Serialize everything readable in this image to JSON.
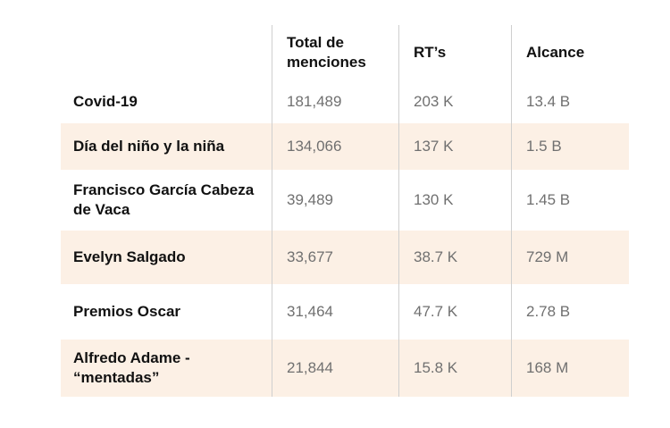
{
  "table": {
    "headers": [
      "",
      "Total de\nmenciones",
      "RT’s",
      "Alcance"
    ],
    "rows": [
      {
        "name": "Covid-19",
        "mentions": "181,489",
        "rts": "203 K",
        "reach": "13.4 B"
      },
      {
        "name": "Día del niño y la niña",
        "mentions": "134,066",
        "rts": "137 K",
        "reach": "1.5 B"
      },
      {
        "name": "Francisco García Cabeza de Vaca",
        "mentions": "39,489",
        "rts": "130 K",
        "reach": "1.45 B"
      },
      {
        "name": "Evelyn Salgado",
        "mentions": "33,677",
        "rts": "38.7 K",
        "reach": "729 M"
      },
      {
        "name": "Premios Oscar",
        "mentions": "31,464",
        "rts": "47.7 K",
        "reach": "2.78 B"
      },
      {
        "name": "Alfredo Adame - “mentadas”",
        "mentions": "21,844",
        "rts": "15.8 K",
        "reach": "168 M"
      }
    ],
    "shaded_color": "#fcf0e5",
    "divider_color": "#cfcfcf"
  }
}
